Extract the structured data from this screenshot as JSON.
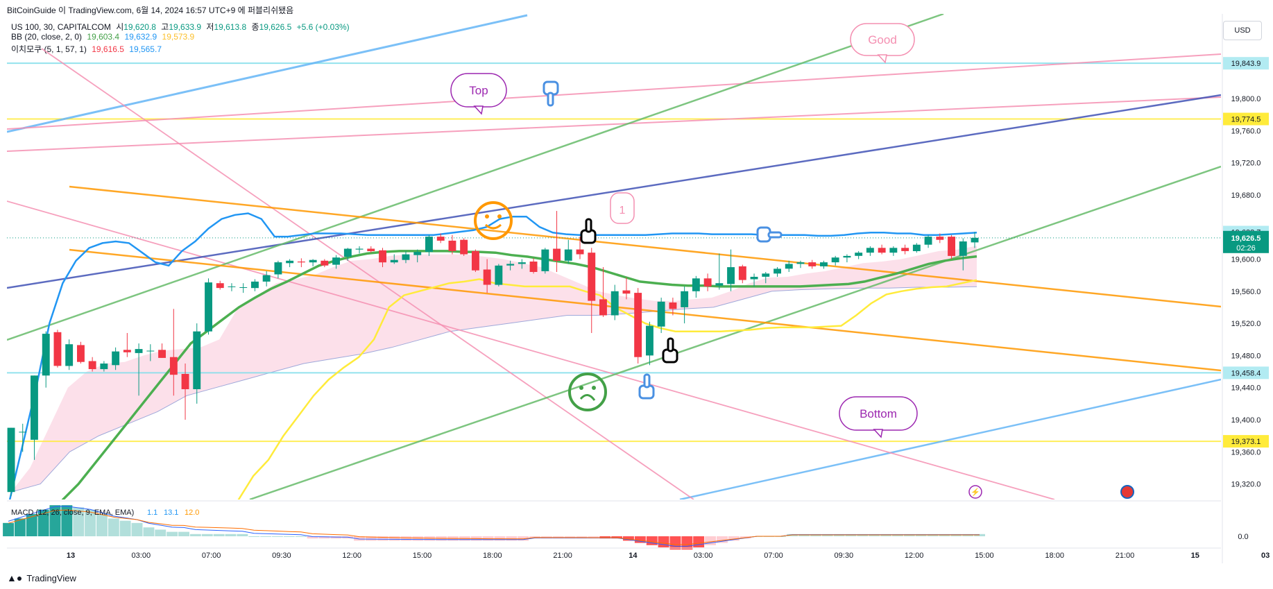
{
  "header": {
    "text": "BitCoinGuide 이 TradingView.com, 6월 14, 2024 16:57 UTC+9 에 퍼블리쉬됐음"
  },
  "legend": {
    "symbol": "US 100, 30, CAPITALCOM",
    "o_label": "시",
    "o": "19,620.8",
    "h_label": "고",
    "h": "19,633.9",
    "l_label": "저",
    "l": "19,613.8",
    "c_label": "종",
    "c": "19,626.5",
    "change": "+5.6 (+0.03%)",
    "bb_label": "BB (20, close, 2, 0)",
    "bb_basis": "19,603.4",
    "bb_upper": "19,632.9",
    "bb_lower": "19,573.9",
    "ichimoku_label": "이치모쿠 (5, 1, 57, 1)",
    "ichi_a": "19,616.5",
    "ichi_b": "19,565.7",
    "macd_label": "MACD (12, 26, close, 9, EMA, EMA)",
    "macd_a": "1.1",
    "macd_b": "13.1",
    "macd_c": "12.0"
  },
  "currency_button": "USD",
  "footer": {
    "brand": "TradingView"
  },
  "colors": {
    "up": "#089981",
    "down": "#f23645",
    "bb": "#2196f3",
    "basis": "#4caf50",
    "lower": "#ffeb3b",
    "cloud": "#f8bbd0",
    "orange": "#ff9800",
    "pink": "#f48fb1",
    "navy": "#3f51b5",
    "lightblue": "#64b5f6",
    "green": "#66bb6a",
    "cyan": "#80deea"
  },
  "annotations": {
    "top": "Top",
    "good": "Good",
    "bottom": "Bottom",
    "one": "1"
  },
  "chart_data": {
    "type": "candlestick",
    "symbol": "US 100",
    "interval": "30",
    "price_axis": {
      "ticks": [
        "19,800.0",
        "19,760.0",
        "19,720.0",
        "19,680.0",
        "19,600.0",
        "19,560.0",
        "19,520.0",
        "19,480.0",
        "19,440.0",
        "19,400.0",
        "19,360.0",
        "19,320.0"
      ],
      "tick_values": [
        19800,
        19760,
        19720,
        19680,
        19600,
        19560,
        19520,
        19480,
        19440,
        19400,
        19360,
        19320
      ],
      "ylim": [
        19305,
        19890
      ],
      "price_labels": [
        {
          "text": "19,843.9",
          "value": 19843.9,
          "color": "#b2ebf2"
        },
        {
          "text": "19,774.5",
          "value": 19774.5,
          "color": "#ffeb3b"
        },
        {
          "text": "19,633.7",
          "value": 19633.7,
          "color": "#b2ebf2"
        },
        {
          "text": "19,458.4",
          "value": 19458.4,
          "color": "#b2ebf2"
        },
        {
          "text": "19,373.1",
          "value": 19373.1,
          "color": "#ffeb3b"
        }
      ],
      "last_price": {
        "text": "19,626.5",
        "timer": "02:26",
        "value": 19626.5
      }
    },
    "time_axis": {
      "labels": [
        "13",
        "03:00",
        "07:00",
        "09:30",
        "12:00",
        "15:00",
        "18:00",
        "21:00",
        "14",
        "03:00",
        "07:00",
        "09:30",
        "12:00",
        "15:00",
        "18:00",
        "21:00",
        "15",
        "03"
      ]
    },
    "horizontal_levels": [
      {
        "value": 19843.9,
        "color": "cyan"
      },
      {
        "value": 19774.5,
        "color": "yellow"
      },
      {
        "value": 19458.4,
        "color": "cyan"
      },
      {
        "value": 19373.1,
        "color": "yellow"
      }
    ],
    "candles": [
      {
        "o": 19310,
        "h": 19390,
        "l": 19305,
        "c": 19390
      },
      {
        "o": 19385,
        "h": 19395,
        "l": 19360,
        "c": 19385
      },
      {
        "o": 19375,
        "h": 19455,
        "l": 19350,
        "c": 19455
      },
      {
        "o": 19455,
        "h": 19510,
        "l": 19440,
        "c": 19507
      },
      {
        "o": 19509,
        "h": 19512,
        "l": 19465,
        "c": 19467
      },
      {
        "o": 19467,
        "h": 19500,
        "l": 19462,
        "c": 19494
      },
      {
        "o": 19493,
        "h": 19497,
        "l": 19470,
        "c": 19472
      },
      {
        "o": 19473,
        "h": 19478,
        "l": 19460,
        "c": 19463
      },
      {
        "o": 19463,
        "h": 19473,
        "l": 19460,
        "c": 19470
      },
      {
        "o": 19468,
        "h": 19490,
        "l": 19462,
        "c": 19485
      },
      {
        "o": 19487,
        "h": 19508,
        "l": 19478,
        "c": 19484
      },
      {
        "o": 19483,
        "h": 19495,
        "l": 19430,
        "c": 19488
      },
      {
        "o": 19486,
        "h": 19494,
        "l": 19473,
        "c": 19486
      },
      {
        "o": 19487,
        "h": 19495,
        "l": 19477,
        "c": 19477
      },
      {
        "o": 19478,
        "h": 19538,
        "l": 19430,
        "c": 19456
      },
      {
        "o": 19457,
        "h": 19470,
        "l": 19400,
        "c": 19438
      },
      {
        "o": 19438,
        "h": 19520,
        "l": 19420,
        "c": 19510
      },
      {
        "o": 19510,
        "h": 19576,
        "l": 19506,
        "c": 19571
      },
      {
        "o": 19570,
        "h": 19573,
        "l": 19562,
        "c": 19564
      },
      {
        "o": 19566,
        "h": 19570,
        "l": 19560,
        "c": 19566
      },
      {
        "o": 19565,
        "h": 19570,
        "l": 19558,
        "c": 19565
      },
      {
        "o": 19564,
        "h": 19575,
        "l": 19560,
        "c": 19572
      },
      {
        "o": 19572,
        "h": 19585,
        "l": 19566,
        "c": 19580
      },
      {
        "o": 19581,
        "h": 19598,
        "l": 19576,
        "c": 19596
      },
      {
        "o": 19595,
        "h": 19600,
        "l": 19590,
        "c": 19598
      },
      {
        "o": 19597,
        "h": 19601,
        "l": 19590,
        "c": 19596
      },
      {
        "o": 19596,
        "h": 19600,
        "l": 19591,
        "c": 19599
      },
      {
        "o": 19598,
        "h": 19600,
        "l": 19590,
        "c": 19592
      },
      {
        "o": 19593,
        "h": 19605,
        "l": 19588,
        "c": 19602
      },
      {
        "o": 19603,
        "h": 19614,
        "l": 19598,
        "c": 19613
      },
      {
        "o": 19612,
        "h": 19616,
        "l": 19607,
        "c": 19613
      },
      {
        "o": 19613,
        "h": 19616,
        "l": 19608,
        "c": 19610
      },
      {
        "o": 19611,
        "h": 19614,
        "l": 19590,
        "c": 19596
      },
      {
        "o": 19596,
        "h": 19606,
        "l": 19594,
        "c": 19599
      },
      {
        "o": 19599,
        "h": 19610,
        "l": 19595,
        "c": 19606
      },
      {
        "o": 19605,
        "h": 19612,
        "l": 19596,
        "c": 19609
      },
      {
        "o": 19609,
        "h": 19630,
        "l": 19604,
        "c": 19628
      },
      {
        "o": 19628,
        "h": 19632,
        "l": 19620,
        "c": 19623
      },
      {
        "o": 19623,
        "h": 19630,
        "l": 19606,
        "c": 19610
      },
      {
        "o": 19624,
        "h": 19626,
        "l": 19604,
        "c": 19606
      },
      {
        "o": 19610,
        "h": 19612,
        "l": 19584,
        "c": 19586
      },
      {
        "o": 19587,
        "h": 19600,
        "l": 19558,
        "c": 19568
      },
      {
        "o": 19568,
        "h": 19594,
        "l": 19566,
        "c": 19592
      },
      {
        "o": 19592,
        "h": 19598,
        "l": 19586,
        "c": 19594
      },
      {
        "o": 19594,
        "h": 19600,
        "l": 19588,
        "c": 19596
      },
      {
        "o": 19597,
        "h": 19601,
        "l": 19582,
        "c": 19584
      },
      {
        "o": 19585,
        "h": 19614,
        "l": 19582,
        "c": 19612
      },
      {
        "o": 19613,
        "h": 19660,
        "l": 19584,
        "c": 19598
      },
      {
        "o": 19598,
        "h": 19624,
        "l": 19594,
        "c": 19612
      },
      {
        "o": 19612,
        "h": 19628,
        "l": 19600,
        "c": 19606
      },
      {
        "o": 19608,
        "h": 19614,
        "l": 19508,
        "c": 19548
      },
      {
        "o": 19550,
        "h": 19590,
        "l": 19528,
        "c": 19530
      },
      {
        "o": 19530,
        "h": 19568,
        "l": 19524,
        "c": 19560
      },
      {
        "o": 19561,
        "h": 19577,
        "l": 19550,
        "c": 19557
      },
      {
        "o": 19558,
        "h": 19564,
        "l": 19470,
        "c": 19478
      },
      {
        "o": 19480,
        "h": 19522,
        "l": 19468,
        "c": 19517
      },
      {
        "o": 19516,
        "h": 19552,
        "l": 19508,
        "c": 19547
      },
      {
        "o": 19546,
        "h": 19552,
        "l": 19530,
        "c": 19538
      },
      {
        "o": 19540,
        "h": 19566,
        "l": 19520,
        "c": 19560
      },
      {
        "o": 19560,
        "h": 19579,
        "l": 19552,
        "c": 19576
      },
      {
        "o": 19576,
        "h": 19582,
        "l": 19560,
        "c": 19566
      },
      {
        "o": 19567,
        "h": 19607,
        "l": 19562,
        "c": 19570
      },
      {
        "o": 19569,
        "h": 19612,
        "l": 19560,
        "c": 19590
      },
      {
        "o": 19591,
        "h": 19593,
        "l": 19570,
        "c": 19574
      },
      {
        "o": 19575,
        "h": 19582,
        "l": 19566,
        "c": 19578
      },
      {
        "o": 19578,
        "h": 19584,
        "l": 19570,
        "c": 19582
      },
      {
        "o": 19582,
        "h": 19590,
        "l": 19578,
        "c": 19588
      },
      {
        "o": 19588,
        "h": 19598,
        "l": 19584,
        "c": 19594
      },
      {
        "o": 19594,
        "h": 19598,
        "l": 19589,
        "c": 19596
      },
      {
        "o": 19596,
        "h": 19599,
        "l": 19588,
        "c": 19591
      },
      {
        "o": 19591,
        "h": 19598,
        "l": 19588,
        "c": 19596
      },
      {
        "o": 19596,
        "h": 19604,
        "l": 19592,
        "c": 19602
      },
      {
        "o": 19602,
        "h": 19606,
        "l": 19596,
        "c": 19604
      },
      {
        "o": 19604,
        "h": 19610,
        "l": 19600,
        "c": 19608
      },
      {
        "o": 19608,
        "h": 19616,
        "l": 19604,
        "c": 19614
      },
      {
        "o": 19614,
        "h": 19618,
        "l": 19606,
        "c": 19608
      },
      {
        "o": 19608,
        "h": 19616,
        "l": 19604,
        "c": 19614
      },
      {
        "o": 19614,
        "h": 19618,
        "l": 19606,
        "c": 19610
      },
      {
        "o": 19610,
        "h": 19620,
        "l": 19608,
        "c": 19618
      },
      {
        "o": 19618,
        "h": 19630,
        "l": 19614,
        "c": 19628
      },
      {
        "o": 19628,
        "h": 19632,
        "l": 19620,
        "c": 19624
      },
      {
        "o": 19628,
        "h": 19630,
        "l": 19600,
        "c": 19604
      },
      {
        "o": 19604,
        "h": 19626,
        "l": 19586,
        "c": 19622
      },
      {
        "o": 19620.8,
        "h": 19633.9,
        "l": 19613.8,
        "c": 19626.5
      }
    ],
    "bollinger_upper": [
      19300,
      19370,
      19440,
      19520,
      19570,
      19598,
      19614,
      19620,
      19622,
      19620,
      19608,
      19596,
      19592,
      19610,
      19622,
      19638,
      19650,
      19655,
      19657,
      19650,
      19628,
      19628,
      19630,
      19632,
      19632,
      19632,
      19631,
      19630,
      19630,
      19630,
      19630,
      19630,
      19630,
      19632,
      19634,
      19636,
      19640,
      19650,
      19653,
      19653,
      19640,
      19633,
      19631,
      19630,
      19630,
      19630,
      19630,
      19630,
      19630,
      19631,
      19632,
      19632,
      19632,
      19631,
      19631,
      19631,
      19631,
      19630,
      19630,
      19630,
      19630,
      19629,
      19629,
      19630,
      19632,
      19633,
      19633,
      19632,
      19632,
      19630,
      19630,
      19631,
      19632,
      19633
    ],
    "bollinger_basis": [
      19300,
      19320,
      19345,
      19370,
      19395,
      19420,
      19445,
      19470,
      19495,
      19510,
      19525,
      19540,
      19552,
      19563,
      19572,
      19582,
      19592,
      19598,
      19603,
      19607,
      19609,
      19610,
      19610,
      19610,
      19610,
      19609,
      19609,
      19608,
      19605,
      19603,
      19600,
      19597,
      19594,
      19590,
      19584,
      19578,
      19572,
      19570,
      19568,
      19567,
      19567,
      19566,
      19566,
      19566,
      19566,
      19566,
      19566,
      19567,
      19568,
      19569,
      19572,
      19577,
      19582,
      19588,
      19594,
      19598,
      19601,
      19603.4
    ],
    "bollinger_lower": [
      19200,
      19250,
      19300,
      19330,
      19350,
      19380,
      19405,
      19430,
      19450,
      19465,
      19478,
      19500,
      19540,
      19555,
      19560,
      19565,
      19570,
      19572,
      19575,
      19570,
      19568,
      19566,
      19566,
      19566,
      19566,
      19560,
      19555,
      19540,
      19530,
      19520,
      19514,
      19510,
      19510,
      19510,
      19510,
      19511,
      19512,
      19514,
      19515,
      19515,
      19515,
      19516,
      19517,
      19530,
      19545,
      19556,
      19560,
      19563,
      19565,
      19566,
      19570,
      19573.9
    ],
    "ichimoku_cloud_top": [
      19310,
      19340,
      19390,
      19440,
      19460,
      19470,
      19472,
      19480,
      19486,
      19488,
      19490,
      19500,
      19540,
      19555,
      19570,
      19575,
      19580,
      19590,
      19598,
      19600,
      19604,
      19606,
      19606,
      19606,
      19606,
      19603,
      19600,
      19595,
      19590,
      19580,
      19570,
      19560,
      19555,
      19551,
      19548,
      19548,
      19550,
      19552,
      19560,
      19570,
      19577,
      19578,
      19582,
      19585,
      19590,
      19595,
      19597,
      19600,
      19605,
      19610,
      19612,
      19616.5
    ],
    "ichimoku_cloud_bottom": [
      19310,
      19320,
      19360,
      19380,
      19395,
      19410,
      19430,
      19440,
      19450,
      19460,
      19470,
      19476,
      19482,
      19490,
      19500,
      19510,
      19515,
      19520,
      19525,
      19530,
      19530,
      19532,
      19535,
      19538,
      19540,
      19550,
      19560,
      19562,
      19563,
      19564,
      19564,
      19565,
      19565,
      19565.7
    ],
    "macd": {
      "histogram_visible": true,
      "zero_label": "0.0",
      "values": [
        6,
        8,
        10,
        12,
        14,
        14,
        13,
        12,
        10,
        8,
        7,
        6,
        4,
        3,
        2,
        2,
        1,
        1,
        1,
        1,
        1,
        0,
        0,
        0,
        0,
        0,
        -1,
        -1,
        -1,
        -1,
        -2,
        -2,
        -2,
        -2,
        -2,
        -2,
        -2,
        -2,
        -2,
        -2,
        -2,
        -2,
        -2,
        -2,
        -2,
        -1,
        -1,
        -1,
        -1,
        -1,
        -1,
        -1,
        -1,
        -2,
        -3,
        -4,
        -5,
        -6,
        -6,
        -5,
        -4,
        -3,
        -2,
        -1,
        0,
        0,
        0,
        1,
        1,
        1,
        1,
        1,
        1,
        1,
        1,
        1,
        1,
        1,
        1,
        1,
        1,
        1,
        1,
        1
      ]
    }
  }
}
